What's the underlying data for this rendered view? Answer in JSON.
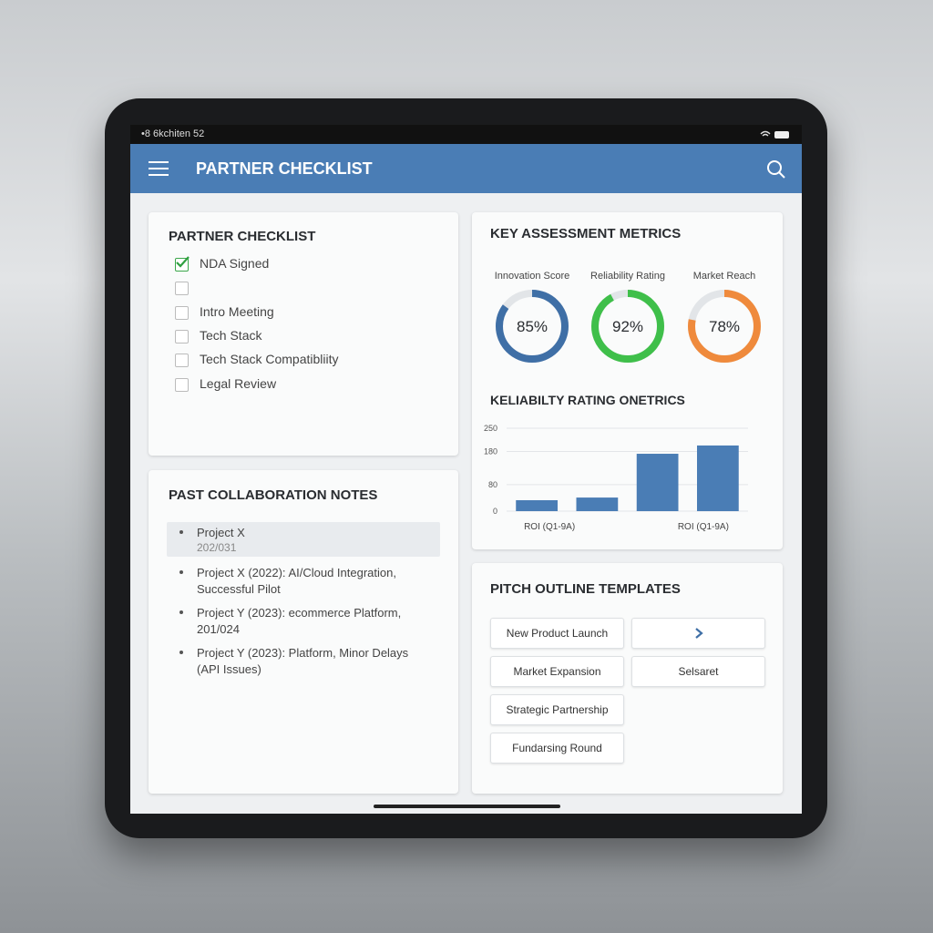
{
  "status_bar": {
    "left": "•8 6kchiten 52"
  },
  "app_bar": {
    "title": "PARTNER CHECKLIST"
  },
  "checklist": {
    "title": "PARTNER CHECKLIST",
    "items": [
      {
        "label": "NDA Signed",
        "checked": true
      },
      {
        "label": null,
        "checked": false
      },
      {
        "label": "Intro Meeting",
        "checked": false
      },
      {
        "label": "Tech Stack",
        "checked": false
      },
      {
        "label": "Tech Stack Compatibliity",
        "checked": false
      },
      {
        "label": "Legal Review",
        "checked": false
      }
    ]
  },
  "metrics": {
    "title": "KEY ASSESSMENT METRICS",
    "gauges": [
      {
        "name": "Innovation Score",
        "value": 85,
        "value_label": "85%",
        "color": "#3f6fa6"
      },
      {
        "name": "Reliability Rating",
        "value": 92,
        "value_label": "92%",
        "color": "#3fbf4a"
      },
      {
        "name": "Market Reach",
        "value": 78,
        "value_label": "78%",
        "color": "#ef8a3c"
      }
    ]
  },
  "chart_data": {
    "type": "bar",
    "title": "KELIABILTY RATING ONETRICS",
    "categories": [
      "ROI (Q1-9A)",
      null,
      null,
      "ROI (Q1-9A)"
    ],
    "values": [
      33,
      41,
      173,
      198
    ],
    "color": "#4a7db5",
    "ylim": [
      0,
      250
    ],
    "yticks": [
      0,
      80,
      180,
      250
    ],
    "grid": true
  },
  "notes": {
    "title": "PAST COLLABORATION NOTES",
    "items": [
      {
        "text": "Project X",
        "sub": "202/031"
      },
      {
        "text": "Project X (2022): AI/Cloud Integration, Successful Pilot"
      },
      {
        "text": "Project Y (2023): ecommerce Platform, 201/024"
      },
      {
        "text": "Project Y (2023): Platform, Minor Delays (API Issues)"
      }
    ]
  },
  "pitch": {
    "title": "PITCH OUTLINE TEMPLATES",
    "buttons": [
      "New Product Launch",
      "Market Expansion",
      "Selsaret",
      "Strategic Partnership",
      "Fundarsing Round"
    ]
  }
}
